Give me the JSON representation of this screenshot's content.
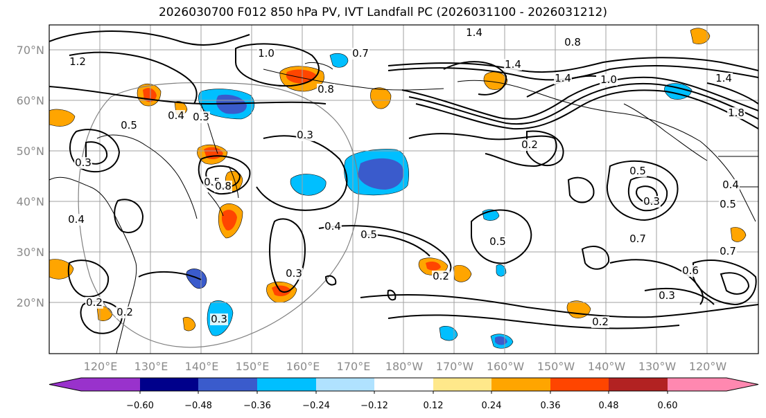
{
  "title": "2026030700 F012 850 hPa PV, IVT Landfall PC (2026031100 - 2026031212)",
  "latitude_labels": [
    "70°N",
    "60°N",
    "50°N",
    "40°N",
    "30°N",
    "20°N"
  ],
  "longitude_labels": [
    "120°E",
    "130°E",
    "140°E",
    "150°E",
    "160°E",
    "170°E",
    "180°W",
    "170°W",
    "160°W",
    "150°W",
    "140°W",
    "130°W",
    "120°W"
  ],
  "colorbar": {
    "ticks": [
      "−0.60",
      "−0.48",
      "−0.36",
      "−0.24",
      "−0.12",
      "0.12",
      "0.24",
      "0.36",
      "0.48",
      "0.60"
    ],
    "colors": [
      "#9932cc",
      "#00008b",
      "#3a5bcc",
      "#00bfff",
      "#b0e2ff",
      "#ffffff",
      "#ffe88a",
      "#ffa500",
      "#ff4500",
      "#b22222",
      "#ff88b0"
    ]
  },
  "contour_labels": [
    "1.4",
    "0.8",
    "0.7",
    "1.0",
    "1.2",
    "0.8",
    "1.4",
    "1.4",
    "1.0",
    "1.8",
    "0.3",
    "0.5",
    "0.4",
    "0.3",
    "0.5",
    "0.2",
    "0.3",
    "0.8",
    "0.5",
    "0.3",
    "0.4",
    "0.4",
    "0.5",
    "0.5",
    "0.2",
    "0.7",
    "0.6",
    "0.3",
    "0.2",
    "0.2",
    "0.3",
    "0.4",
    "0.5",
    "0.3",
    "1.4",
    "0.7",
    "0.2"
  ]
}
